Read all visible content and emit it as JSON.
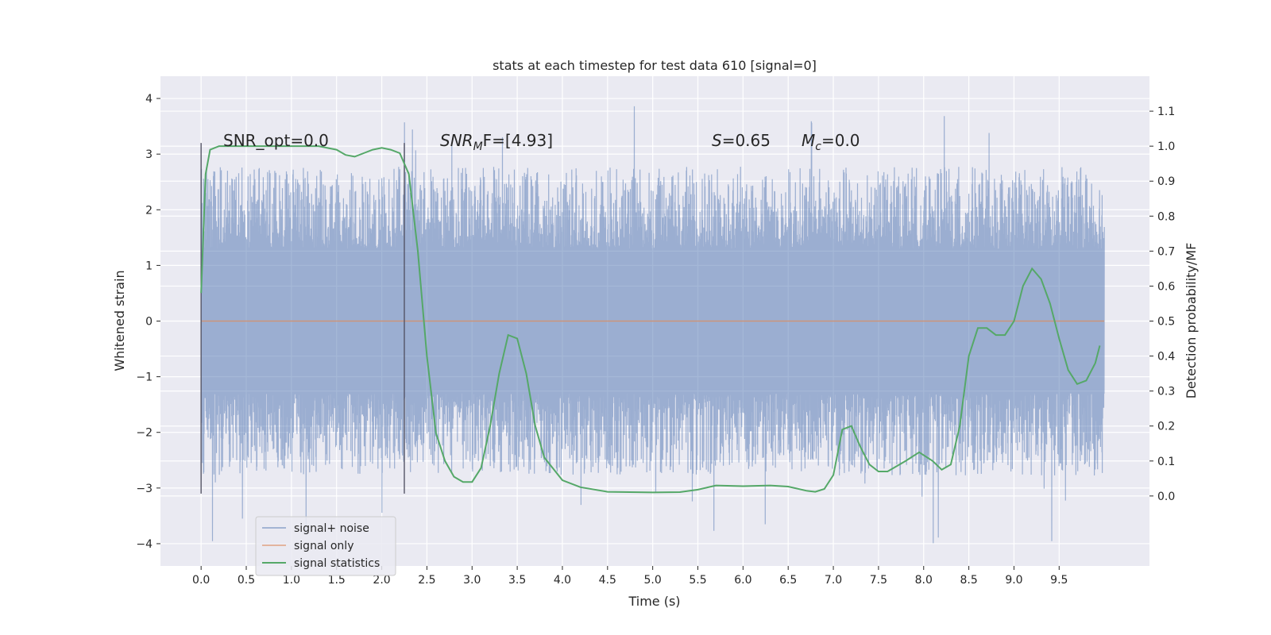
{
  "chart_data": {
    "type": "line",
    "title": "stats at each timestep for test data 610 [signal=0]",
    "xlabel": "Time (s)",
    "ylabel": "Whitened strain",
    "y2label": "Detection probability/MF",
    "xlim": [
      -0.45,
      10.5
    ],
    "ylim": [
      -4.4,
      4.4
    ],
    "y2lim": [
      -0.2,
      1.2
    ],
    "xticks": [
      0.0,
      0.5,
      1.0,
      1.5,
      2.0,
      2.5,
      3.0,
      3.5,
      4.0,
      4.5,
      5.0,
      5.5,
      6.0,
      6.5,
      7.0,
      7.5,
      8.0,
      8.5,
      9.0,
      9.5
    ],
    "xtick_labels": [
      "0.0",
      "0.5",
      "1.0",
      "1.5",
      "2.0",
      "2.5",
      "3.0",
      "3.5",
      "4.0",
      "4.5",
      "5.0",
      "5.5",
      "6.0",
      "6.5",
      "7.0",
      "7.5",
      "8.0",
      "8.5",
      "9.0",
      "9.5"
    ],
    "yticks": [
      -4,
      -3,
      -2,
      -1,
      0,
      1,
      2,
      3,
      4
    ],
    "ytick_labels": [
      "−4",
      "−3",
      "−2",
      "−1",
      "0",
      "1",
      "2",
      "3",
      "4"
    ],
    "y2ticks": [
      0.0,
      0.1,
      0.2,
      0.3,
      0.4,
      0.5,
      0.6,
      0.7,
      0.8,
      0.9,
      1.0,
      1.1
    ],
    "y2tick_labels": [
      "0.0",
      "0.1",
      "0.2",
      "0.3",
      "0.4",
      "0.5",
      "0.6",
      "0.7",
      "0.8",
      "0.9",
      "1.0",
      "1.1"
    ],
    "grid": true,
    "legend_position": "lower-left",
    "annotations": {
      "snr_opt": "SNR_opt=0.0",
      "snr_mf_sym": "SNR",
      "snr_mf_sub": "M",
      "snr_mf_rest": "F=[4.93]",
      "s_sym": "S",
      "s_rest": "=0.65",
      "mc_sym": "M",
      "mc_sub": "c",
      "mc_rest": "=0.0"
    },
    "vlines": [
      0.0,
      2.25
    ],
    "vline_range": [
      -3.1,
      3.2
    ],
    "series": [
      {
        "name": "signal+ noise",
        "color": "#4c72b0",
        "axis": "left",
        "x_range": [
          0.0,
          10.0
        ],
        "sample_rate_hz": 2048,
        "envelope_abs": 1.3,
        "typical_peak": 2.5,
        "max_value": 4.05,
        "min_value": -3.98
      },
      {
        "name": "signal only",
        "color": "#dd8452",
        "axis": "left",
        "x": [
          0.0,
          10.0
        ],
        "y": [
          0.0,
          0.0
        ]
      },
      {
        "name": "signal statistics",
        "color": "#55a868",
        "axis": "right",
        "x": [
          0.0,
          0.05,
          0.1,
          0.15,
          0.2,
          0.3,
          0.5,
          0.8,
          1.0,
          1.3,
          1.5,
          1.6,
          1.7,
          1.8,
          1.9,
          2.0,
          2.1,
          2.2,
          2.3,
          2.4,
          2.5,
          2.6,
          2.7,
          2.8,
          2.9,
          3.0,
          3.1,
          3.2,
          3.3,
          3.4,
          3.5,
          3.6,
          3.7,
          3.8,
          4.0,
          4.2,
          4.5,
          5.0,
          5.3,
          5.5,
          5.7,
          6.0,
          6.3,
          6.5,
          6.7,
          6.8,
          6.9,
          7.0,
          7.1,
          7.2,
          7.3,
          7.4,
          7.5,
          7.6,
          7.8,
          7.95,
          8.1,
          8.2,
          8.3,
          8.4,
          8.5,
          8.6,
          8.7,
          8.8,
          8.9,
          9.0,
          9.1,
          9.2,
          9.3,
          9.4,
          9.5,
          9.6,
          9.7,
          9.8,
          9.9,
          9.95
        ],
        "y": [
          0.58,
          0.92,
          0.99,
          0.995,
          1.0,
          1.0,
          1.0,
          1.0,
          1.0,
          1.0,
          0.99,
          0.975,
          0.97,
          0.98,
          0.99,
          0.995,
          0.99,
          0.98,
          0.92,
          0.7,
          0.4,
          0.18,
          0.1,
          0.055,
          0.04,
          0.04,
          0.08,
          0.2,
          0.35,
          0.46,
          0.45,
          0.35,
          0.2,
          0.11,
          0.045,
          0.025,
          0.012,
          0.01,
          0.011,
          0.018,
          0.03,
          0.028,
          0.03,
          0.027,
          0.015,
          0.012,
          0.02,
          0.06,
          0.19,
          0.2,
          0.14,
          0.09,
          0.07,
          0.07,
          0.1,
          0.125,
          0.1,
          0.075,
          0.09,
          0.2,
          0.4,
          0.48,
          0.48,
          0.46,
          0.46,
          0.5,
          0.6,
          0.65,
          0.62,
          0.55,
          0.45,
          0.36,
          0.32,
          0.33,
          0.38,
          0.43
        ]
      }
    ]
  }
}
